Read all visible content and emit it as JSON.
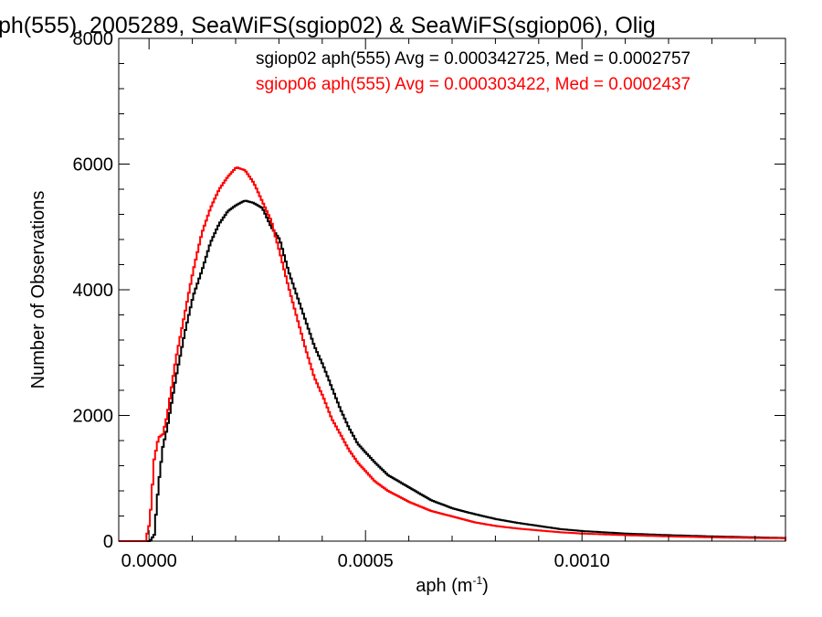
{
  "chart_data": {
    "type": "line",
    "title": "ph(555), 2005289, SeaWiFS(sgiop02) & SeaWiFS(sgiop06), Olig",
    "xlabel": "aph (m",
    "xlabel_sup": "-1",
    "xlabel_close": ")",
    "ylabel": "Number of Observations",
    "xlim": [
      -7e-05,
      0.00147
    ],
    "ylim": [
      0,
      8000
    ],
    "x_ticks": [
      0.0,
      0.0005,
      0.001
    ],
    "x_tick_labels": [
      "0.0000",
      "0.0005",
      "0.0010"
    ],
    "y_ticks": [
      0,
      2000,
      4000,
      6000,
      8000
    ],
    "y_tick_labels": [
      "0",
      "2000",
      "4000",
      "6000",
      "8000"
    ],
    "grid": false,
    "legend_position": "top-right",
    "series": [
      {
        "name": "sgiop02 aph(555) Avg = 0.000342725, Med = 0.0002757",
        "color": "#000000",
        "points": [
          [
            -7e-05,
            0
          ],
          [
            0.0,
            0
          ],
          [
            1e-05,
            100
          ],
          [
            2e-05,
            900
          ],
          [
            3e-05,
            1500
          ],
          [
            4e-05,
            1800
          ],
          [
            6e-05,
            2600
          ],
          [
            8e-05,
            3300
          ],
          [
            0.0001,
            3900
          ],
          [
            0.00012,
            4300
          ],
          [
            0.00014,
            4750
          ],
          [
            0.00016,
            5050
          ],
          [
            0.00018,
            5250
          ],
          [
            0.0002,
            5350
          ],
          [
            0.00022,
            5420
          ],
          [
            0.00024,
            5380
          ],
          [
            0.00026,
            5300
          ],
          [
            0.00028,
            5000
          ],
          [
            0.0003,
            4800
          ],
          [
            0.00032,
            4300
          ],
          [
            0.00034,
            3900
          ],
          [
            0.00036,
            3500
          ],
          [
            0.00038,
            3100
          ],
          [
            0.0004,
            2800
          ],
          [
            0.00042,
            2450
          ],
          [
            0.00044,
            2100
          ],
          [
            0.00046,
            1800
          ],
          [
            0.00048,
            1550
          ],
          [
            0.0005,
            1400
          ],
          [
            0.00052,
            1250
          ],
          [
            0.00055,
            1050
          ],
          [
            0.0006,
            850
          ],
          [
            0.00065,
            650
          ],
          [
            0.0007,
            520
          ],
          [
            0.00075,
            430
          ],
          [
            0.0008,
            350
          ],
          [
            0.00085,
            290
          ],
          [
            0.0009,
            240
          ],
          [
            0.00095,
            190
          ],
          [
            0.001,
            160
          ],
          [
            0.0011,
            120
          ],
          [
            0.0012,
            95
          ],
          [
            0.0013,
            75
          ],
          [
            0.0014,
            60
          ],
          [
            0.00147,
            50
          ]
        ]
      },
      {
        "name": "sgiop06 aph(555) Avg = 0.000303422, Med = 0.0002437",
        "color": "#ff0000",
        "points": [
          [
            -7e-05,
            0
          ],
          [
            -1e-05,
            0
          ],
          [
            0.0,
            300
          ],
          [
            1e-05,
            1300
          ],
          [
            2e-05,
            1650
          ],
          [
            3e-05,
            1700
          ],
          [
            4e-05,
            2000
          ],
          [
            6e-05,
            2900
          ],
          [
            8e-05,
            3600
          ],
          [
            0.0001,
            4300
          ],
          [
            0.00012,
            4900
          ],
          [
            0.00014,
            5300
          ],
          [
            0.00016,
            5600
          ],
          [
            0.00018,
            5800
          ],
          [
            0.0002,
            5950
          ],
          [
            0.00022,
            5900
          ],
          [
            0.00024,
            5700
          ],
          [
            0.00026,
            5400
          ],
          [
            0.00028,
            5100
          ],
          [
            0.0003,
            4600
          ],
          [
            0.00032,
            4050
          ],
          [
            0.00034,
            3550
          ],
          [
            0.00036,
            3050
          ],
          [
            0.00038,
            2600
          ],
          [
            0.0004,
            2300
          ],
          [
            0.00042,
            1950
          ],
          [
            0.00044,
            1700
          ],
          [
            0.00046,
            1450
          ],
          [
            0.00048,
            1250
          ],
          [
            0.0005,
            1100
          ],
          [
            0.00052,
            950
          ],
          [
            0.00055,
            800
          ],
          [
            0.0006,
            620
          ],
          [
            0.00065,
            480
          ],
          [
            0.0007,
            390
          ],
          [
            0.00075,
            300
          ],
          [
            0.0008,
            240
          ],
          [
            0.00085,
            200
          ],
          [
            0.0009,
            170
          ],
          [
            0.00095,
            140
          ],
          [
            0.001,
            120
          ],
          [
            0.0011,
            95
          ],
          [
            0.0012,
            75
          ],
          [
            0.0013,
            60
          ],
          [
            0.0014,
            50
          ],
          [
            0.00147,
            45
          ]
        ]
      }
    ]
  }
}
